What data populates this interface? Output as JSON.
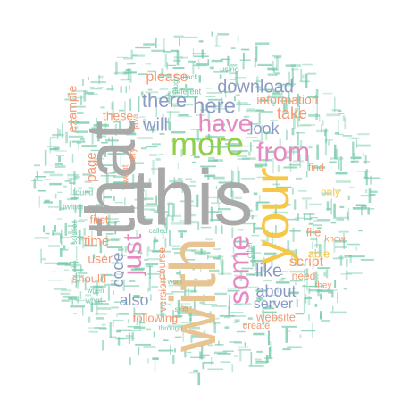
{
  "palette": {
    "gray": "#a9a9a9",
    "tan": "#e6c593",
    "gold": "#f5c84a",
    "green": "#8fcf4a",
    "pink": "#e58bc2",
    "slate": "#8c9bc6",
    "salmon": "#f39a74",
    "mint": "#71c8a6"
  },
  "words": [
    {
      "text": "this",
      "color": "gray"
    },
    {
      "text": "that",
      "color": "gray"
    },
    {
      "text": "with",
      "color": "tan"
    },
    {
      "text": "your",
      "color": "gold"
    },
    {
      "text": "more",
      "color": "green"
    },
    {
      "text": "have",
      "color": "pink"
    },
    {
      "text": "from",
      "color": "pink"
    },
    {
      "text": "just",
      "color": "pink"
    },
    {
      "text": "some",
      "color": "pink"
    },
    {
      "text": "here",
      "color": "slate"
    },
    {
      "text": "there",
      "color": "slate"
    },
    {
      "text": "download",
      "color": "slate"
    },
    {
      "text": "will",
      "color": "slate"
    },
    {
      "text": "look",
      "color": "slate"
    },
    {
      "text": "like",
      "color": "slate"
    },
    {
      "text": "about",
      "color": "slate"
    },
    {
      "text": "code",
      "color": "slate"
    },
    {
      "text": "also",
      "color": "slate"
    },
    {
      "text": "server",
      "color": "slate"
    },
    {
      "text": "take",
      "color": "salmon"
    },
    {
      "text": "please",
      "color": "salmon"
    },
    {
      "text": "example",
      "color": "salmon"
    },
    {
      "text": "these",
      "color": "salmon"
    },
    {
      "text": "page",
      "color": "salmon"
    },
    {
      "text": "information",
      "color": "salmon"
    },
    {
      "text": "script",
      "color": "salmon"
    },
    {
      "text": "time",
      "color": "salmon"
    },
    {
      "text": "user",
      "color": "salmon"
    },
    {
      "text": "first",
      "color": "salmon"
    },
    {
      "text": "should",
      "color": "salmon"
    },
    {
      "text": "website",
      "color": "salmon"
    },
    {
      "text": "following",
      "color": "salmon"
    },
    {
      "text": "version",
      "color": "salmon"
    },
    {
      "text": "course",
      "color": "salmon"
    },
    {
      "text": "file",
      "color": "salmon"
    },
    {
      "text": "only",
      "color": "gold"
    },
    {
      "text": "able",
      "color": "gold"
    },
    {
      "text": "need",
      "color": "salmon"
    },
    {
      "text": "create",
      "color": "salmon"
    },
    {
      "text": "find",
      "color": "salmon"
    },
    {
      "text": "they",
      "color": "salmon"
    },
    {
      "text": "know",
      "color": "salmon"
    },
    {
      "text": "want",
      "color": "salmon"
    },
    {
      "text": "very",
      "color": "salmon"
    },
    {
      "text": "java",
      "color": "salmon"
    },
    {
      "text": "different",
      "color": "mint"
    },
    {
      "text": "using",
      "color": "mint"
    },
    {
      "text": "what",
      "color": "mint"
    },
    {
      "text": "found",
      "color": "mint"
    },
    {
      "text": "twitter",
      "color": "mint"
    },
    {
      "text": "when",
      "color": "mint"
    },
    {
      "text": "work",
      "color": "mint"
    },
    {
      "text": "through",
      "color": "mint"
    },
    {
      "text": "other",
      "color": "mint"
    },
    {
      "text": "called",
      "color": "mint"
    },
    {
      "text": "stuff",
      "color": "mint"
    },
    {
      "text": "plugin",
      "color": "mint"
    },
    {
      "text": "back",
      "color": "mint"
    },
    {
      "text": "solution",
      "color": "mint"
    }
  ]
}
